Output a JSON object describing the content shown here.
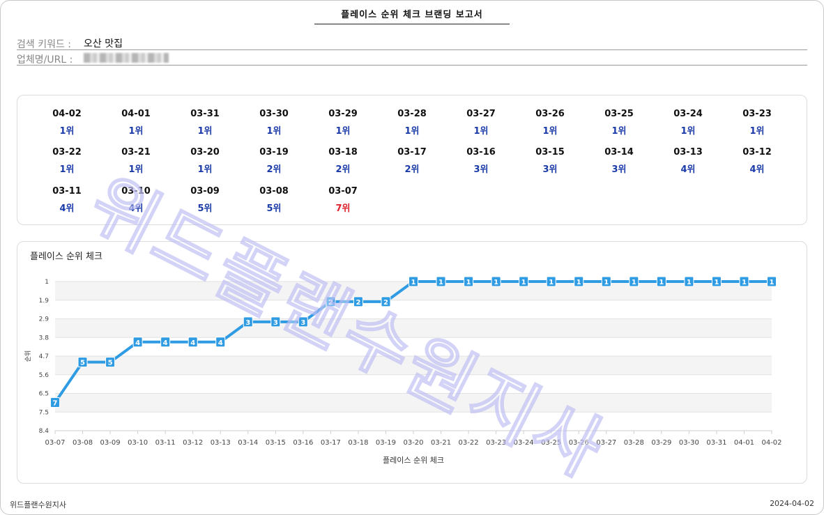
{
  "report": {
    "title": "플레이스 순위 체크 브랜딩 보고서",
    "keyword_label": "검색 키워드 :",
    "keyword_value": "오산 맛집",
    "url_label": "업체명/URL :"
  },
  "daily_ranks": [
    {
      "date": "04-02",
      "rank": "1위"
    },
    {
      "date": "04-01",
      "rank": "1위"
    },
    {
      "date": "03-31",
      "rank": "1위"
    },
    {
      "date": "03-30",
      "rank": "1위"
    },
    {
      "date": "03-29",
      "rank": "1위"
    },
    {
      "date": "03-28",
      "rank": "1위"
    },
    {
      "date": "03-27",
      "rank": "1위"
    },
    {
      "date": "03-26",
      "rank": "1위"
    },
    {
      "date": "03-25",
      "rank": "1위"
    },
    {
      "date": "03-24",
      "rank": "1위"
    },
    {
      "date": "03-23",
      "rank": "1위"
    },
    {
      "date": "03-22",
      "rank": "1위"
    },
    {
      "date": "03-21",
      "rank": "1위"
    },
    {
      "date": "03-20",
      "rank": "1위"
    },
    {
      "date": "03-19",
      "rank": "2위"
    },
    {
      "date": "03-18",
      "rank": "2위"
    },
    {
      "date": "03-17",
      "rank": "2위"
    },
    {
      "date": "03-16",
      "rank": "3위"
    },
    {
      "date": "03-15",
      "rank": "3위"
    },
    {
      "date": "03-14",
      "rank": "3위"
    },
    {
      "date": "03-13",
      "rank": "4위"
    },
    {
      "date": "03-12",
      "rank": "4위"
    },
    {
      "date": "03-11",
      "rank": "4위"
    },
    {
      "date": "03-10",
      "rank": "4위"
    },
    {
      "date": "03-09",
      "rank": "5위"
    },
    {
      "date": "03-08",
      "rank": "5위"
    },
    {
      "date": "03-07",
      "rank": "7위",
      "highlight": true
    }
  ],
  "colors": {
    "line": "#2f9be3",
    "rank_text": "#1a3aa8",
    "highlight": "#e0202a"
  },
  "watermark": "위드플랜수원지사",
  "footer": {
    "company": "위드플랜수원지사",
    "date": "2024-04-02"
  },
  "chart_data": {
    "type": "line",
    "title": "플레이스 순위 체크",
    "xlabel": "플레이스 순위 체크",
    "ylabel": "순위",
    "y_reversed": true,
    "ylim": [
      1,
      8.4
    ],
    "yticks": [
      "1",
      "1.9",
      "2.9",
      "3.8",
      "4.7",
      "5.6",
      "6.5",
      "7.5",
      "8.4"
    ],
    "grid": true,
    "categories": [
      "03-07",
      "03-08",
      "03-09",
      "03-10",
      "03-11",
      "03-12",
      "03-13",
      "03-14",
      "03-15",
      "03-16",
      "03-17",
      "03-18",
      "03-19",
      "03-20",
      "03-21",
      "03-22",
      "03-23",
      "03-24",
      "03-25",
      "03-26",
      "03-27",
      "03-28",
      "03-29",
      "03-30",
      "03-31",
      "04-01",
      "04-02"
    ],
    "values": [
      7,
      5,
      5,
      4,
      4,
      4,
      4,
      3,
      3,
      3,
      2,
      2,
      2,
      1,
      1,
      1,
      1,
      1,
      1,
      1,
      1,
      1,
      1,
      1,
      1,
      1,
      1
    ]
  }
}
